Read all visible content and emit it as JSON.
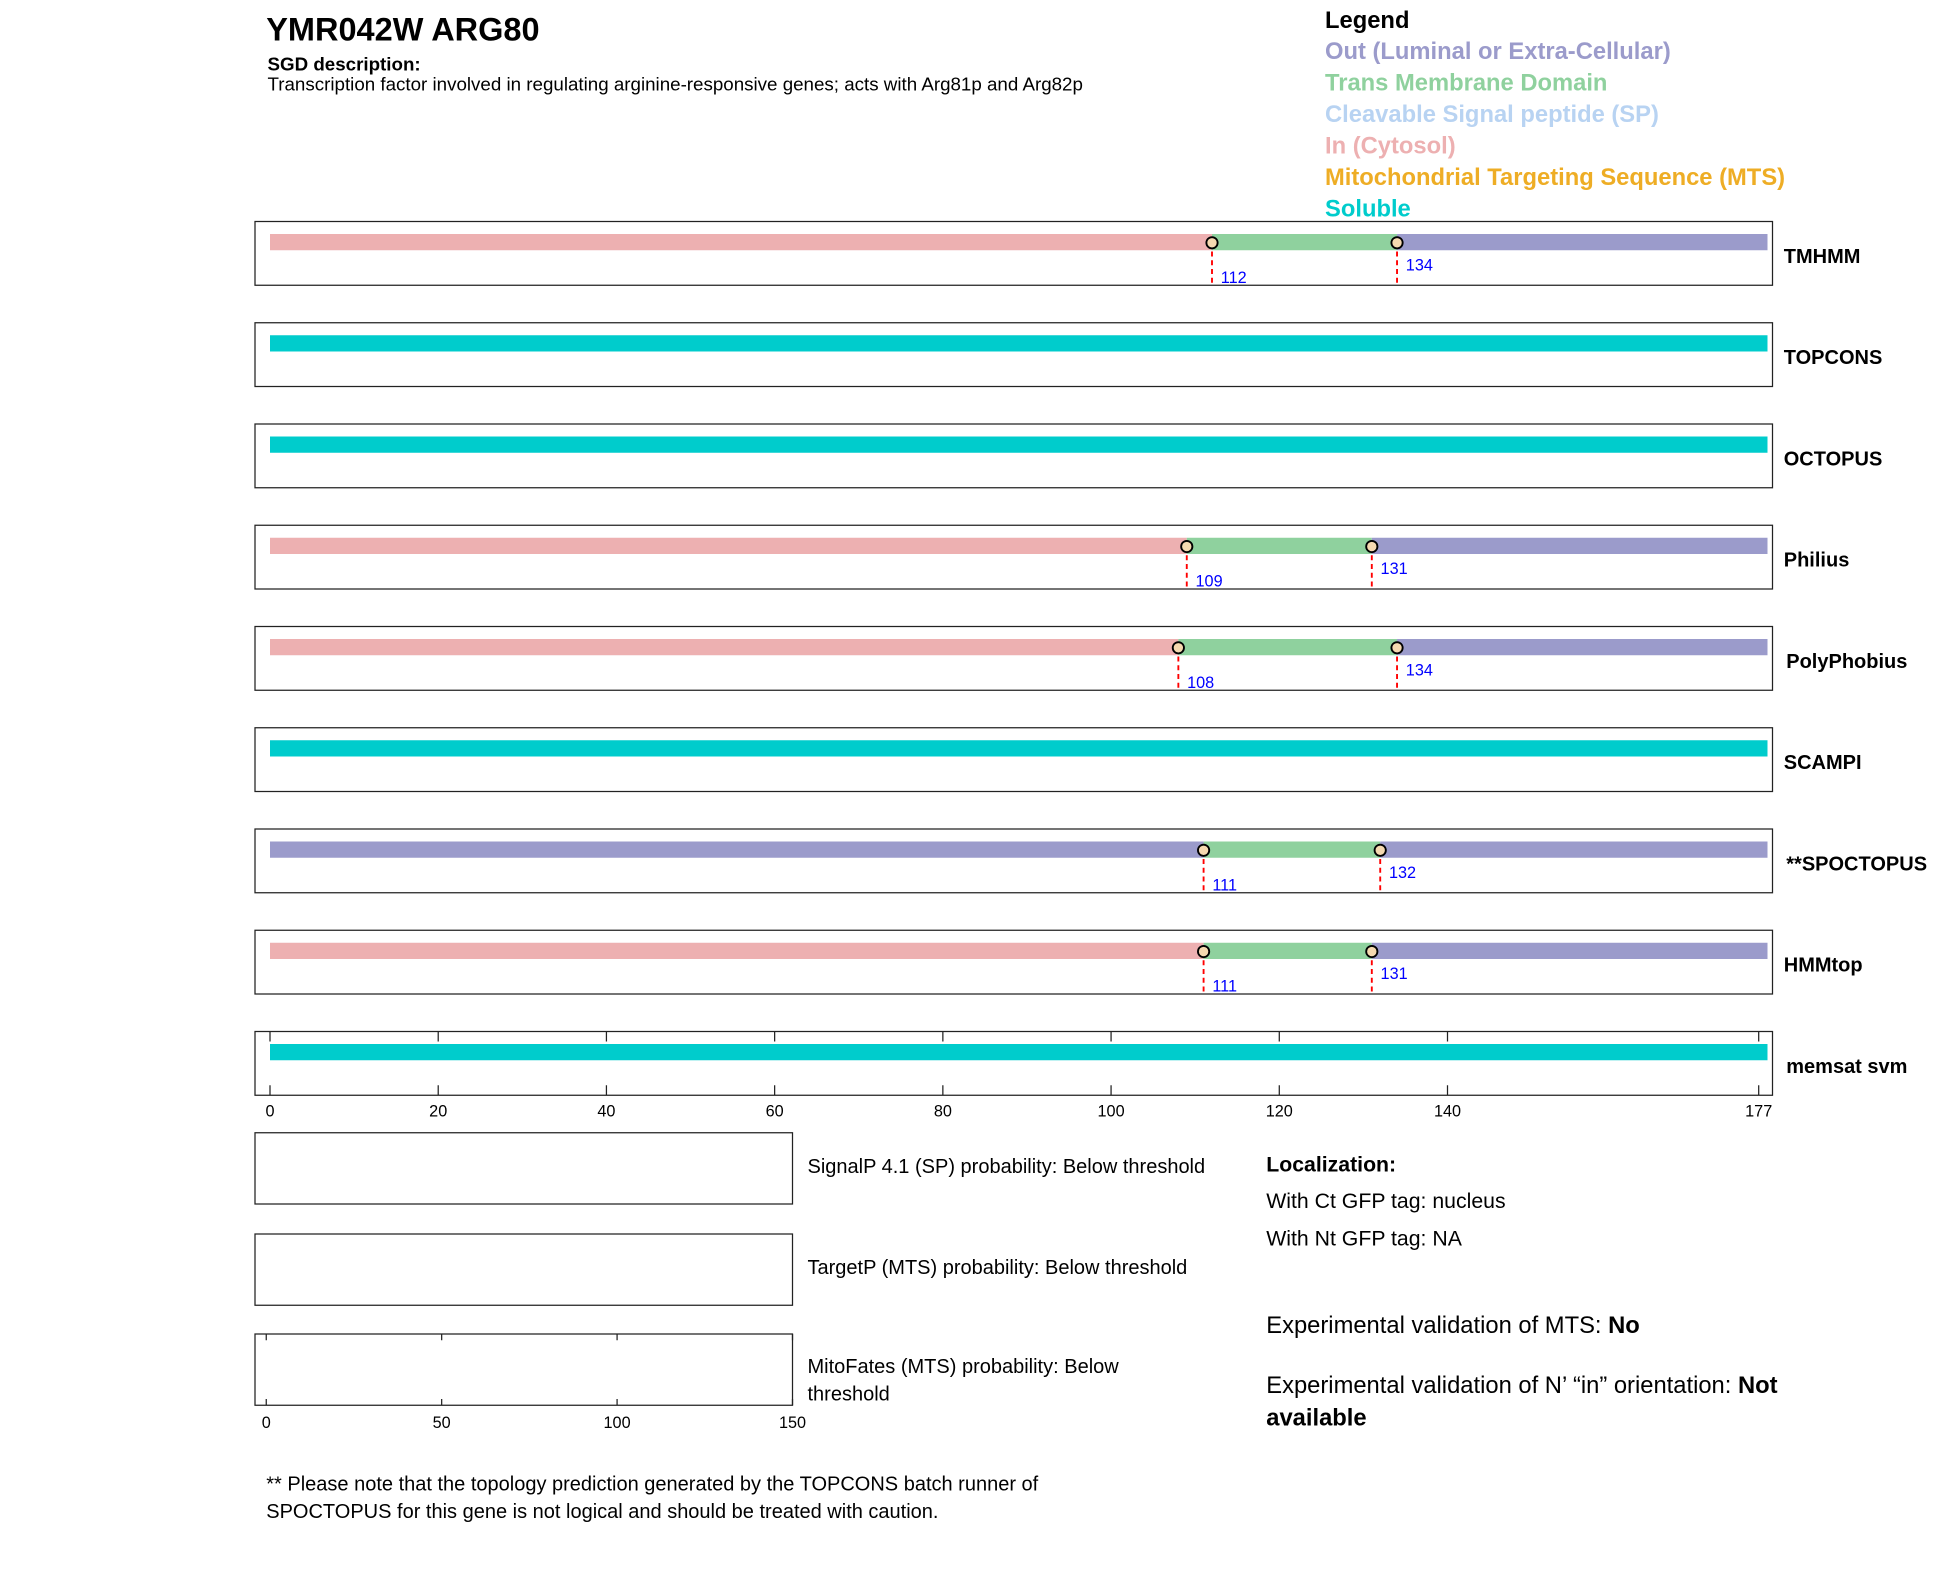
{
  "header": {
    "title": "YMR042W  ARG80",
    "sgd_label": "SGD description:",
    "sgd_description": "Transcription factor involved in regulating arginine-responsive genes; acts with Arg81p and Arg82p"
  },
  "legend": {
    "title": "Legend",
    "items": [
      {
        "key": "out",
        "label": "Out (Luminal or Extra-Cellular)",
        "color": "#9b9bcb"
      },
      {
        "key": "tm",
        "label": "Trans Membrane Domain",
        "color": "#8fd19e"
      },
      {
        "key": "sp",
        "label": "Cleavable Signal peptide (SP)",
        "color": "#b8d3f2"
      },
      {
        "key": "in",
        "label": "In (Cytosol)",
        "color": "#edb0b1"
      },
      {
        "key": "mts",
        "label": "Mitochondrial Targeting Sequence (MTS)",
        "color": "#eead25"
      },
      {
        "key": "soluble",
        "label": "Soluble",
        "color": "#00cccc"
      }
    ]
  },
  "chart_data": {
    "type": "bar",
    "xlim": [
      0,
      177
    ],
    "x_ticks": [
      "0",
      "20",
      "40",
      "60",
      "80",
      "100",
      "120",
      "140",
      "177"
    ],
    "tracks": [
      {
        "name": "TMHMM",
        "segments": [
          [
            "in",
            0,
            112
          ],
          [
            "tm",
            112,
            134
          ],
          [
            "out",
            134,
            177
          ]
        ],
        "markers": [
          112,
          134
        ]
      },
      {
        "name": "TOPCONS",
        "segments": [
          [
            "soluble",
            0,
            177
          ]
        ],
        "markers": []
      },
      {
        "name": "OCTOPUS",
        "segments": [
          [
            "soluble",
            0,
            177
          ]
        ],
        "markers": []
      },
      {
        "name": "Philius",
        "segments": [
          [
            "in",
            0,
            109
          ],
          [
            "tm",
            109,
            131
          ],
          [
            "out",
            131,
            177
          ]
        ],
        "markers": [
          109,
          131
        ]
      },
      {
        "name": "PolyPhobius",
        "segments": [
          [
            "in",
            0,
            108
          ],
          [
            "tm",
            108,
            134
          ],
          [
            "out",
            134,
            177
          ]
        ],
        "markers": [
          108,
          134
        ]
      },
      {
        "name": "SCAMPI",
        "segments": [
          [
            "soluble",
            0,
            177
          ]
        ],
        "markers": []
      },
      {
        "name": "**SPOCTOPUS",
        "segments": [
          [
            "out",
            0,
            111
          ],
          [
            "tm",
            111,
            132
          ],
          [
            "out",
            132,
            177
          ]
        ],
        "markers": [
          111,
          132
        ]
      },
      {
        "name": "HMMtop",
        "segments": [
          [
            "in",
            0,
            111
          ],
          [
            "tm",
            111,
            131
          ],
          [
            "out",
            131,
            177
          ]
        ],
        "markers": [
          111,
          131
        ]
      },
      {
        "name": "memsat svm",
        "segments": [
          [
            "soluble",
            0,
            177
          ]
        ],
        "markers": []
      }
    ],
    "probability_panels": [
      {
        "label": "SignalP 4.1 (SP) probability: Below threshold"
      },
      {
        "label": "TargetP (MTS) probability: Below threshold"
      },
      {
        "label_lines": [
          "MitoFates (MTS) probability: Below",
          "threshold"
        ],
        "xlim": [
          0,
          150
        ],
        "x_ticks": [
          "0",
          "50",
          "100",
          "150"
        ]
      }
    ]
  },
  "localization": {
    "title": "Localization:",
    "ct": "With Ct GFP tag: nucleus",
    "nt": "With Nt GFP tag: NA",
    "mts_label": "Experimental validation of MTS: ",
    "mts_value": "No",
    "orient_label": "Experimental validation of N’ “in” orientation: ",
    "orient_value_1": "Not",
    "orient_value_2": "available"
  },
  "footnote": [
    "** Please note that the topology prediction generated by the TOPCONS batch runner of",
    "SPOCTOPUS for this gene is not logical and should be treated with caution."
  ]
}
